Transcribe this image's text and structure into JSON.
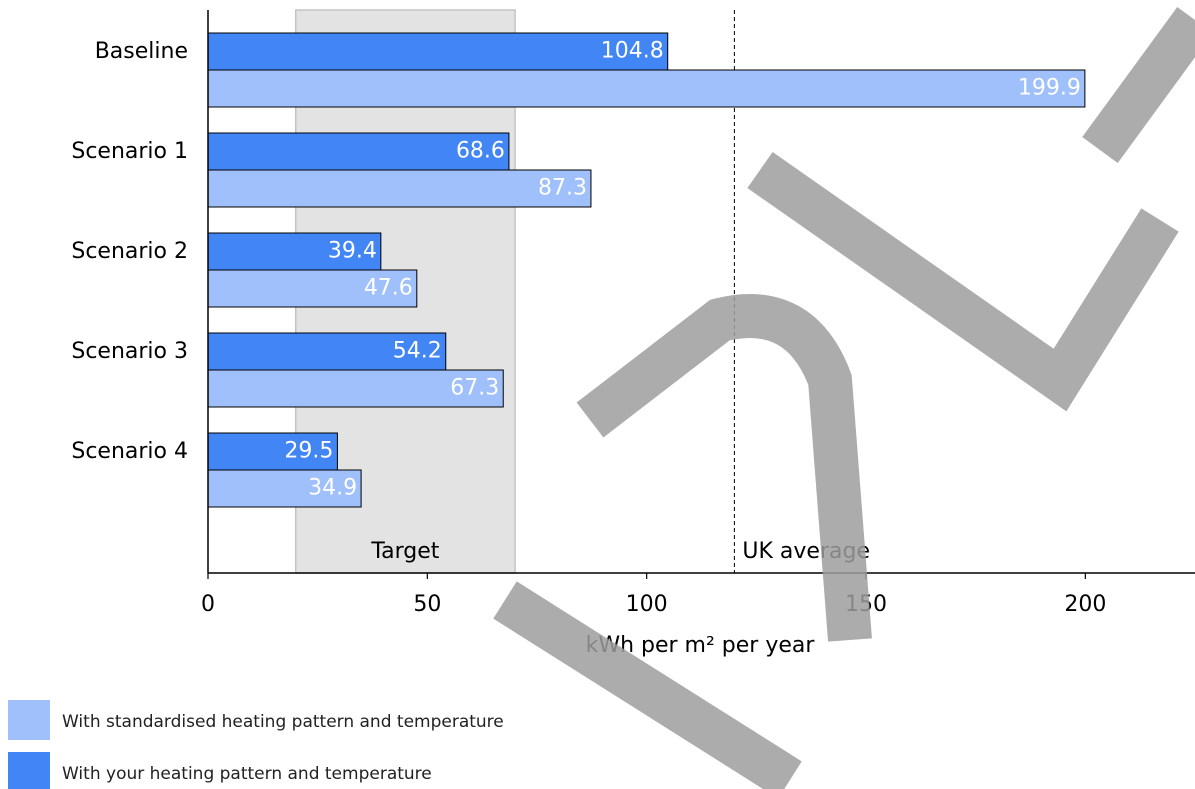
{
  "chart_data": {
    "type": "bar",
    "orientation": "horizontal",
    "categories": [
      "Baseline",
      "Scenario 1",
      "Scenario 2",
      "Scenario 3",
      "Scenario 4"
    ],
    "series": [
      {
        "name": "With your heating pattern and temperature",
        "color": "#4285f4",
        "values": [
          104.8,
          68.6,
          39.4,
          54.2,
          29.5
        ]
      },
      {
        "name": "With standardised heating pattern and temperature",
        "color": "#9fc0fa",
        "values": [
          199.9,
          87.3,
          47.6,
          67.3,
          34.9
        ]
      }
    ],
    "xlim": [
      0,
      225
    ],
    "xticks": [
      0,
      50,
      100,
      150,
      200
    ],
    "xlabel": "kWh per m² per year",
    "target": {
      "label": "Target",
      "range": [
        20,
        70
      ],
      "color": "#e3e3e3"
    },
    "uk_average": {
      "label": "UK average",
      "value": 120
    }
  }
}
